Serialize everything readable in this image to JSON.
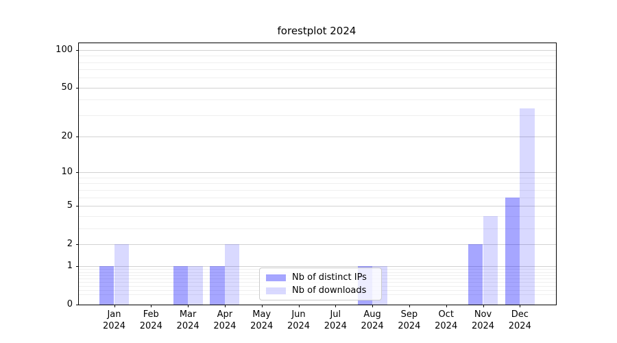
{
  "chart_data": {
    "type": "bar",
    "title": "forestplot 2024",
    "categories": [
      "Jan",
      "Feb",
      "Mar",
      "Apr",
      "May",
      "Jun",
      "Jul",
      "Aug",
      "Sep",
      "Oct",
      "Nov",
      "Dec"
    ],
    "category_year": "2024",
    "series": [
      {
        "name": "Nb of distinct IPs",
        "color": "rgba(0,0,255,0.35)",
        "values": [
          1,
          0,
          1,
          1,
          0,
          0,
          0,
          1,
          0,
          0,
          2,
          6
        ]
      },
      {
        "name": "Nb of downloads",
        "color": "rgba(0,0,255,0.15)",
        "values": [
          2,
          0,
          1,
          2,
          0,
          0,
          0,
          1,
          0,
          0,
          4,
          34
        ]
      }
    ],
    "y_axis": {
      "scale": "log1p",
      "ticks": [
        0,
        1,
        2,
        5,
        10,
        20,
        50,
        100
      ],
      "minor_ticks": [
        0.2,
        0.3,
        0.4,
        0.5,
        0.6,
        0.7,
        0.8,
        0.9,
        3,
        4,
        6,
        7,
        8,
        9,
        30,
        40,
        60,
        70,
        80,
        90
      ],
      "ylim": [
        0,
        113
      ]
    },
    "xlabel": "",
    "ylabel": "",
    "grid": "both",
    "legend": {
      "position": "lower center",
      "entries": [
        "Nb of distinct IPs",
        "Nb of downloads"
      ]
    }
  }
}
